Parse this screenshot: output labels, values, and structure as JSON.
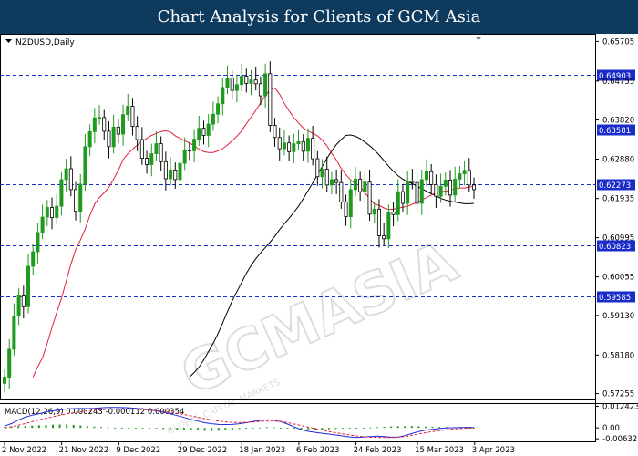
{
  "banner": {
    "title": "Chart Analysis for Clients of GCM Asia"
  },
  "watermark": {
    "main": "GCMASIA",
    "sub": "GLOBAL CAPITAL MARKETS"
  },
  "chart_data": {
    "type": "candlestick",
    "price_panel": {
      "label": "NZDUSD,Daily",
      "ylim": [
        0.5718,
        0.6578
      ],
      "y_ticks": [
        "0.65705",
        "0.64755",
        "0.63820",
        "0.62880",
        "0.61935",
        "0.60995",
        "0.60055",
        "0.59130",
        "0.58180",
        "0.57255"
      ],
      "levels": [
        {
          "label": "0.64903",
          "value": 0.64903
        },
        {
          "label": "0.63581",
          "value": 0.63581
        },
        {
          "label": "0.62273",
          "value": 0.62273
        },
        {
          "label": "0.60823",
          "value": 0.60823
        },
        {
          "label": "0.59585",
          "value": 0.59585
        }
      ],
      "colors": {
        "up": "#1f9a1f",
        "down": "#000000",
        "ma_fast": "#e0203a",
        "ma_slow": "#000000",
        "level": "#1a2cc9"
      },
      "closes": [
        0.5765,
        0.5832,
        0.5912,
        0.596,
        0.5934,
        0.6031,
        0.6066,
        0.6112,
        0.6149,
        0.6172,
        0.6148,
        0.6175,
        0.6239,
        0.6265,
        0.6215,
        0.6163,
        0.6228,
        0.6318,
        0.6354,
        0.6387,
        0.6388,
        0.6355,
        0.6318,
        0.6365,
        0.6348,
        0.6395,
        0.6415,
        0.6367,
        0.6335,
        0.629,
        0.6275,
        0.6301,
        0.6325,
        0.6282,
        0.6241,
        0.6262,
        0.6239,
        0.6278,
        0.631,
        0.6308,
        0.6336,
        0.6362,
        0.6345,
        0.6372,
        0.6396,
        0.6421,
        0.646,
        0.6483,
        0.6453,
        0.6467,
        0.6487,
        0.647,
        0.6478,
        0.6469,
        0.644,
        0.6493,
        0.6369,
        0.634,
        0.6313,
        0.6327,
        0.6306,
        0.6325,
        0.633,
        0.6307,
        0.6338,
        0.6289,
        0.6246,
        0.6264,
        0.6226,
        0.6239,
        0.6232,
        0.6185,
        0.615,
        0.6215,
        0.624,
        0.621,
        0.6233,
        0.6156,
        0.6168,
        0.6104,
        0.6097,
        0.6161,
        0.6155,
        0.621,
        0.6182,
        0.6235,
        0.6232,
        0.6182,
        0.6239,
        0.6258,
        0.6227,
        0.6199,
        0.6223,
        0.6238,
        0.6202,
        0.624,
        0.6253,
        0.6261,
        0.6226,
        0.6215
      ],
      "ma_fast": [
        0.5765,
        0.579,
        0.5811,
        0.5846,
        0.5884,
        0.592,
        0.5954,
        0.5995,
        0.6036,
        0.6071,
        0.6094,
        0.612,
        0.6153,
        0.618,
        0.6196,
        0.6207,
        0.622,
        0.624,
        0.6261,
        0.6287,
        0.6301,
        0.6312,
        0.6322,
        0.6331,
        0.6338,
        0.6345,
        0.635,
        0.6354,
        0.6356,
        0.6353,
        0.6344,
        0.6338,
        0.6332,
        0.6327,
        0.632,
        0.6312,
        0.6306,
        0.6304,
        0.6304,
        0.6308,
        0.6313,
        0.6322,
        0.6332,
        0.6343,
        0.6356,
        0.6373,
        0.6389,
        0.6405,
        0.6423,
        0.644,
        0.6455,
        0.6459,
        0.6444,
        0.6422,
        0.6404,
        0.6388,
        0.6375,
        0.6363,
        0.6356,
        0.635,
        0.6344,
        0.6334,
        0.632,
        0.6302,
        0.6286,
        0.6266,
        0.6251,
        0.6238,
        0.623,
        0.6223,
        0.6207,
        0.6194,
        0.618,
        0.6177,
        0.6171,
        0.6167,
        0.6168,
        0.617,
        0.6173,
        0.6175,
        0.618,
        0.6184,
        0.619,
        0.6196,
        0.6202,
        0.6207,
        0.6211,
        0.6211,
        0.6214,
        0.6216,
        0.6219,
        0.6219,
        0.6221,
        0.6223
      ],
      "ma_slow": [
        0.5765,
        0.5776,
        0.5789,
        0.5806,
        0.5826,
        0.5846,
        0.5869,
        0.5895,
        0.5922,
        0.5948,
        0.597,
        0.5992,
        0.6014,
        0.6033,
        0.6049,
        0.6063,
        0.6076,
        0.6089,
        0.6103,
        0.6119,
        0.6133,
        0.6146,
        0.616,
        0.6175,
        0.6193,
        0.6212,
        0.6231,
        0.6251,
        0.627,
        0.629,
        0.6307,
        0.6323,
        0.6335,
        0.6345,
        0.6346,
        0.6343,
        0.6337,
        0.6329,
        0.632,
        0.631,
        0.6298,
        0.6285,
        0.6271,
        0.6259,
        0.6248,
        0.624,
        0.6234,
        0.6229,
        0.6223,
        0.6217,
        0.6211,
        0.6205,
        0.62,
        0.6194,
        0.619,
        0.6187,
        0.6185,
        0.6183,
        0.6181,
        0.6181,
        0.6182
      ]
    },
    "macd_panel": {
      "label": "MACD(12,26,9) 0.000243 -0.000112 0.000354",
      "ylim": [
        -0.00675,
        0.0127
      ],
      "y_ticks": [
        "0.012423",
        "0.00",
        "-0.006321"
      ],
      "colors": {
        "macd": "#1f2ad6",
        "signal": "#e0203a",
        "histogram": "#1f9a1f"
      },
      "macd": [
        0.001,
        0.0025,
        0.0045,
        0.0062,
        0.0073,
        0.0082,
        0.0091,
        0.0098,
        0.0104,
        0.0109,
        0.0111,
        0.0112,
        0.0111,
        0.0113,
        0.0116,
        0.0118,
        0.0118,
        0.0117,
        0.0116,
        0.0113,
        0.0109,
        0.0104,
        0.0098,
        0.009,
        0.0081,
        0.0071,
        0.006,
        0.0049,
        0.0039,
        0.003,
        0.0024,
        0.002,
        0.0019,
        0.002,
        0.0024,
        0.003,
        0.0037,
        0.0043,
        0.0046,
        0.0044,
        0.0036,
        0.0022,
        0.0005,
        -0.001,
        -0.002,
        -0.0026,
        -0.0031,
        -0.0036,
        -0.0041,
        -0.0047,
        -0.0052,
        -0.0056,
        -0.0053,
        -0.005,
        -0.0048,
        -0.005,
        -0.0054,
        -0.0053,
        -0.0045,
        -0.0033,
        -0.0021,
        -0.0013,
        -0.0008,
        -0.0004,
        -0.0001,
        0.0001,
        0.0002,
        0.0003,
        0.0002
      ],
      "signal": [
        0.0,
        0.0006,
        0.0015,
        0.0025,
        0.0036,
        0.0046,
        0.0055,
        0.0064,
        0.0073,
        0.008,
        0.0087,
        0.0093,
        0.0098,
        0.0102,
        0.0105,
        0.0107,
        0.0108,
        0.0108,
        0.0108,
        0.0107,
        0.0105,
        0.0103,
        0.0099,
        0.0095,
        0.009,
        0.0084,
        0.0077,
        0.0069,
        0.0061,
        0.0053,
        0.0046,
        0.004,
        0.0035,
        0.0032,
        0.0031,
        0.0032,
        0.0034,
        0.0037,
        0.0039,
        0.004,
        0.0037,
        0.0031,
        0.0022,
        0.0013,
        0.0004,
        -0.0005,
        -0.0013,
        -0.0021,
        -0.0028,
        -0.0035,
        -0.0041,
        -0.0047,
        -0.0051,
        -0.0054,
        -0.0055,
        -0.0055,
        -0.0056,
        -0.0054,
        -0.005,
        -0.0043,
        -0.0035,
        -0.0028,
        -0.0021,
        -0.0016,
        -0.0011,
        -0.0007,
        -0.0004,
        -0.0002,
        -0.0001
      ],
      "histogram": [
        0.0006,
        0.0008,
        0.001,
        0.0011,
        0.0013,
        0.0015,
        0.0017,
        0.0018,
        0.0019,
        0.0019,
        0.0017,
        0.0014,
        0.001,
        0.0007,
        0.0005,
        0.0003,
        0.0001,
        0.0,
        -0.0001,
        -0.0001,
        -0.0002,
        -0.0003,
        -0.0004,
        -0.0006,
        -0.0008,
        -0.001,
        -0.0012,
        -0.0014,
        -0.0015,
        -0.0017,
        -0.0018,
        -0.0017,
        -0.0014,
        -0.001,
        -0.0006,
        -0.0003,
        -0.0001,
        0.0002,
        0.0004,
        0.0003,
        0.0001,
        -0.0002,
        -0.0005,
        -0.0007,
        -0.0009,
        -0.0011,
        -0.001,
        -0.0008,
        -0.0006,
        -0.0004,
        -0.0003,
        -0.0002,
        -0.0001,
        0.0002,
        0.0004,
        0.0006,
        0.0008,
        0.0009,
        0.001,
        0.0011,
        0.0009,
        0.0007,
        0.0006,
        0.0005,
        0.0004,
        0.0003,
        0.0002,
        0.0001,
        0.0001
      ]
    },
    "x_labels": [
      "2 Nov 2022",
      "21 Nov 2022",
      "9 Dec 2022",
      "29 Dec 2022",
      "18 Jan 2023",
      "6 Feb 2023",
      "24 Feb 2023",
      "15 Mar 2023",
      "3 Apr 2023"
    ],
    "x_label_positions": [
      0,
      13,
      26,
      40,
      54,
      67,
      80,
      94,
      107
    ]
  }
}
